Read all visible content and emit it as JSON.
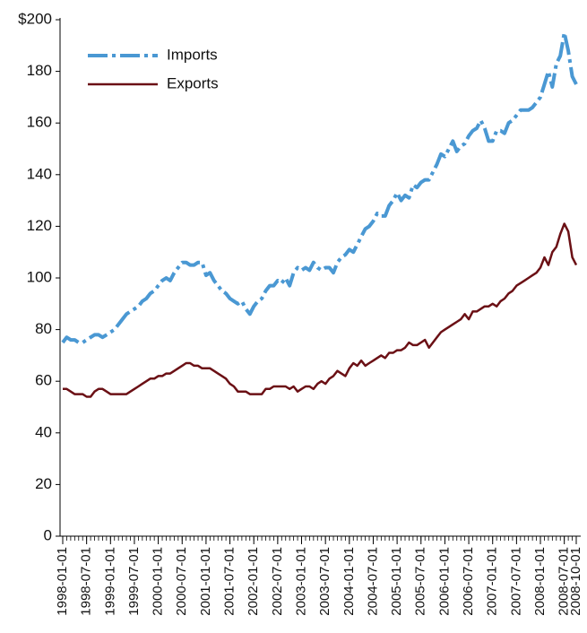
{
  "chart_data": {
    "type": "line",
    "x": [
      "1998-01-01",
      "1998-02-01",
      "1998-03-01",
      "1998-04-01",
      "1998-05-01",
      "1998-06-01",
      "1998-07-01",
      "1998-08-01",
      "1998-09-01",
      "1998-10-01",
      "1998-11-01",
      "1998-12-01",
      "1999-01-01",
      "1999-02-01",
      "1999-03-01",
      "1999-04-01",
      "1999-05-01",
      "1999-06-01",
      "1999-07-01",
      "1999-08-01",
      "1999-09-01",
      "1999-10-01",
      "1999-11-01",
      "1999-12-01",
      "2000-01-01",
      "2000-02-01",
      "2000-03-01",
      "2000-04-01",
      "2000-05-01",
      "2000-06-01",
      "2000-07-01",
      "2000-08-01",
      "2000-09-01",
      "2000-10-01",
      "2000-11-01",
      "2000-12-01",
      "2001-01-01",
      "2001-02-01",
      "2001-03-01",
      "2001-04-01",
      "2001-05-01",
      "2001-06-01",
      "2001-07-01",
      "2001-08-01",
      "2001-09-01",
      "2001-10-01",
      "2001-11-01",
      "2001-12-01",
      "2002-01-01",
      "2002-02-01",
      "2002-03-01",
      "2002-04-01",
      "2002-05-01",
      "2002-06-01",
      "2002-07-01",
      "2002-08-01",
      "2002-09-01",
      "2002-10-01",
      "2002-11-01",
      "2002-12-01",
      "2003-01-01",
      "2003-02-01",
      "2003-03-01",
      "2003-04-01",
      "2003-05-01",
      "2003-06-01",
      "2003-07-01",
      "2003-08-01",
      "2003-09-01",
      "2003-10-01",
      "2003-11-01",
      "2003-12-01",
      "2004-01-01",
      "2004-02-01",
      "2004-03-01",
      "2004-04-01",
      "2004-05-01",
      "2004-06-01",
      "2004-07-01",
      "2004-08-01",
      "2004-09-01",
      "2004-10-01",
      "2004-11-01",
      "2004-12-01",
      "2005-01-01",
      "2005-02-01",
      "2005-03-01",
      "2005-04-01",
      "2005-05-01",
      "2005-06-01",
      "2005-07-01",
      "2005-08-01",
      "2005-09-01",
      "2005-10-01",
      "2005-11-01",
      "2005-12-01",
      "2006-01-01",
      "2006-02-01",
      "2006-03-01",
      "2006-04-01",
      "2006-05-01",
      "2006-06-01",
      "2006-07-01",
      "2006-08-01",
      "2006-09-01",
      "2006-10-01",
      "2006-11-01",
      "2006-12-01",
      "2007-01-01",
      "2007-02-01",
      "2007-03-01",
      "2007-04-01",
      "2007-05-01",
      "2007-06-01",
      "2007-07-01",
      "2007-08-01",
      "2007-09-01",
      "2007-10-01",
      "2007-11-01",
      "2007-12-01",
      "2008-01-01",
      "2008-02-01",
      "2008-03-01",
      "2008-04-01",
      "2008-05-01",
      "2008-06-01",
      "2008-07-01",
      "2008-08-01",
      "2008-09-01",
      "2008-10-01"
    ],
    "xticks": [
      "1998-01-01",
      "1998-07-01",
      "1999-01-01",
      "1999-07-01",
      "2000-01-01",
      "2000-07-01",
      "2001-01-01",
      "2001-07-01",
      "2002-01-01",
      "2002-07-01",
      "2003-01-01",
      "2003-07-01",
      "2004-01-01",
      "2004-07-01",
      "2005-01-01",
      "2005-07-01",
      "2006-01-01",
      "2006-07-01",
      "2007-01-01",
      "2007-07-01",
      "2008-01-01",
      "2008-07-01",
      "2008-10-01"
    ],
    "series": [
      {
        "name": "Imports",
        "color": "#4a98d3",
        "values": [
          75,
          77,
          76,
          76,
          75,
          75,
          76,
          77,
          78,
          78,
          77,
          78,
          79,
          80,
          82,
          84,
          86,
          87,
          88,
          89,
          91,
          92,
          94,
          95,
          97,
          99,
          100,
          99,
          102,
          104,
          106,
          106,
          105,
          105,
          106,
          106,
          101,
          102,
          99,
          97,
          95,
          94,
          92,
          91,
          90,
          91,
          88,
          86,
          89,
          91,
          92,
          95,
          97,
          97,
          99,
          98,
          100,
          97,
          102,
          104,
          103,
          104,
          103,
          106,
          104,
          103,
          104,
          104,
          102,
          106,
          108,
          109,
          111,
          110,
          113,
          116,
          119,
          120,
          122,
          125,
          124,
          124,
          128,
          130,
          133,
          130,
          132,
          131,
          136,
          135,
          137,
          138,
          138,
          141,
          144,
          148,
          147,
          150,
          153,
          149,
          151,
          152,
          155,
          157,
          158,
          161,
          158,
          153,
          153,
          157,
          157,
          156,
          160,
          161,
          163,
          165,
          165,
          165,
          166,
          168,
          170,
          175,
          180,
          174,
          183,
          186,
          195,
          188,
          178,
          175
        ]
      },
      {
        "name": "Exports",
        "color": "#6b1015",
        "values": [
          57,
          57,
          56,
          55,
          55,
          55,
          54,
          54,
          56,
          57,
          57,
          56,
          55,
          55,
          55,
          55,
          55,
          56,
          57,
          58,
          59,
          60,
          61,
          61,
          62,
          62,
          63,
          63,
          64,
          65,
          66,
          67,
          67,
          66,
          66,
          65,
          65,
          65,
          64,
          63,
          62,
          61,
          59,
          58,
          56,
          56,
          56,
          55,
          55,
          55,
          55,
          57,
          57,
          58,
          58,
          58,
          58,
          57,
          58,
          56,
          57,
          58,
          58,
          57,
          59,
          60,
          59,
          61,
          62,
          64,
          63,
          62,
          65,
          67,
          66,
          68,
          66,
          67,
          68,
          69,
          70,
          69,
          71,
          71,
          72,
          72,
          73,
          75,
          74,
          74,
          75,
          76,
          73,
          75,
          77,
          79,
          80,
          81,
          82,
          83,
          84,
          86,
          84,
          87,
          87,
          88,
          89,
          89,
          90,
          89,
          91,
          92,
          94,
          95,
          97,
          98,
          99,
          100,
          101,
          102,
          104,
          108,
          105,
          110,
          112,
          117,
          121,
          118,
          108,
          105
        ]
      }
    ],
    "ylim": [
      0,
      200
    ],
    "yticks": [
      0,
      20,
      40,
      60,
      80,
      100,
      120,
      140,
      160,
      180,
      {
        "value": 200,
        "label": "$200"
      }
    ],
    "legend": "upper left"
  }
}
